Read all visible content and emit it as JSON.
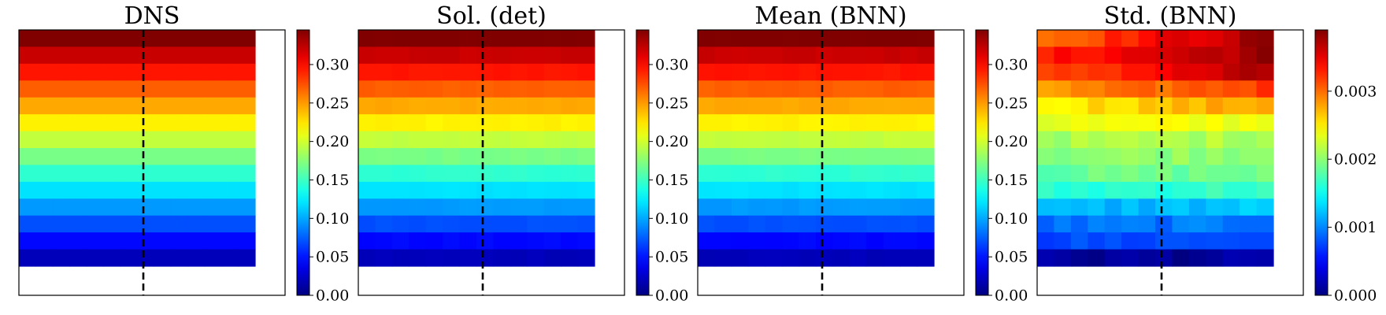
{
  "chart_data": [
    {
      "type": "heatmap",
      "title": "DNS",
      "grid": false,
      "colormap": "jet",
      "colorbar": {
        "range": [
          0,
          0.345
        ],
        "ticks": [
          "0.00",
          "0.05",
          "0.10",
          "0.15",
          "0.20",
          "0.25",
          "0.30"
        ]
      },
      "grid_shape": [
        14,
        14
      ],
      "filled_region": {
        "rows": 14,
        "cols": 14
      },
      "row_values": [
        0.345,
        0.32,
        0.295,
        0.27,
        0.245,
        0.22,
        0.195,
        0.17,
        0.145,
        0.12,
        0.095,
        0.07,
        0.045,
        0.02
      ],
      "cell_noise": 0,
      "dashed_vertical_line": true
    },
    {
      "type": "heatmap",
      "title": "Sol. (det)",
      "grid": false,
      "colormap": "jet",
      "colorbar": {
        "range": [
          0,
          0.345
        ],
        "ticks": [
          "0.00",
          "0.05",
          "0.10",
          "0.15",
          "0.20",
          "0.25",
          "0.30"
        ]
      },
      "grid_shape": [
        14,
        14
      ],
      "filled_region": {
        "rows": 14,
        "cols": 14
      },
      "row_values": [
        0.345,
        0.32,
        0.295,
        0.27,
        0.245,
        0.22,
        0.195,
        0.17,
        0.145,
        0.12,
        0.095,
        0.07,
        0.045,
        0.02
      ],
      "cell_noise": 0.002,
      "dashed_vertical_line": true
    },
    {
      "type": "heatmap",
      "title": "Mean (BNN)",
      "grid": false,
      "colormap": "jet",
      "colorbar": {
        "range": [
          0,
          0.345
        ],
        "ticks": [
          "0.00",
          "0.05",
          "0.10",
          "0.15",
          "0.20",
          "0.25",
          "0.30"
        ]
      },
      "grid_shape": [
        14,
        14
      ],
      "filled_region": {
        "rows": 14,
        "cols": 14
      },
      "row_values": [
        0.345,
        0.32,
        0.295,
        0.27,
        0.245,
        0.22,
        0.195,
        0.17,
        0.145,
        0.12,
        0.095,
        0.07,
        0.045,
        0.02
      ],
      "cell_noise": 0.002,
      "dashed_vertical_line": true
    },
    {
      "type": "heatmap",
      "title": "Std. (BNN)",
      "grid": false,
      "colormap": "jet",
      "colorbar": {
        "range": [
          0,
          0.0039
        ],
        "ticks": [
          "0.000",
          "0.001",
          "0.002",
          "0.003"
        ]
      },
      "grid_shape": [
        14,
        14
      ],
      "filled_region": {
        "rows": 14,
        "cols": 14
      },
      "row_values": [
        0.003,
        0.0033,
        0.0031,
        0.0028,
        0.0025,
        0.00235,
        0.0021,
        0.002,
        0.00185,
        0.0016,
        0.00115,
        0.0009,
        0.00075,
        0.0001
      ],
      "row_right_values": [
        0.0038,
        0.0038,
        0.0037,
        0.0032,
        0.0028,
        0.0024,
        0.00215,
        0.00205,
        0.0019,
        0.0017,
        0.00125,
        0.00095,
        0.0008,
        0.0001
      ],
      "cell_noise": 0.0001,
      "dashed_vertical_line": true
    }
  ]
}
